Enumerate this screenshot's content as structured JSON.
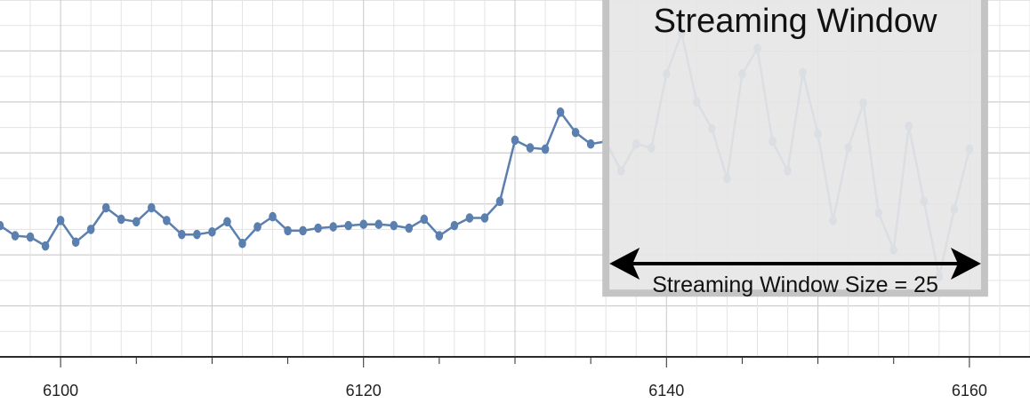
{
  "chart_data": {
    "type": "line",
    "title": "",
    "xlabel": "",
    "ylabel": "",
    "xlim": [
      6096,
      6164
    ],
    "ylim": [
      0,
      14
    ],
    "x_ticks": [
      6100,
      6120,
      6140,
      6160
    ],
    "x_tick_labels": [
      "6100",
      "6120",
      "6140",
      "6160"
    ],
    "grid": true,
    "series": [
      {
        "color": "#5b7fae",
        "x": [
          6096,
          6097,
          6098,
          6099,
          6100,
          6101,
          6102,
          6103,
          6104,
          6105,
          6106,
          6107,
          6108,
          6109,
          6110,
          6111,
          6112,
          6113,
          6114,
          6115,
          6116,
          6117,
          6118,
          6119,
          6120,
          6121,
          6122,
          6123,
          6124,
          6125,
          6126,
          6127,
          6128,
          6129,
          6130,
          6131,
          6132,
          6133,
          6134,
          6135,
          6136,
          6137,
          6138,
          6139,
          6140,
          6141,
          6142,
          6143,
          6144,
          6145,
          6146,
          6147,
          6148,
          6149,
          6150,
          6151,
          6152,
          6153,
          6154,
          6155,
          6156,
          6157,
          6158,
          6159,
          6160
        ],
        "y": [
          5.15,
          4.75,
          4.7,
          4.35,
          5.35,
          4.5,
          5.0,
          5.85,
          5.4,
          5.3,
          5.85,
          5.35,
          4.8,
          4.8,
          4.9,
          5.3,
          4.45,
          5.1,
          5.5,
          4.95,
          4.95,
          5.05,
          5.1,
          5.15,
          5.2,
          5.2,
          5.15,
          5.05,
          5.4,
          4.75,
          5.15,
          5.45,
          5.45,
          6.1,
          8.5,
          8.2,
          8.15,
          9.6,
          8.8,
          8.35,
          8.45,
          7.3,
          8.35,
          8.2,
          11.1,
          12.7,
          10.0,
          8.95,
          7.0,
          11.1,
          12.1,
          8.45,
          7.3,
          11.15,
          8.75,
          5.35,
          8.2,
          9.95,
          5.65,
          4.2,
          9.05,
          6.1,
          3.15,
          5.8,
          8.15
        ]
      }
    ],
    "annotations": {
      "window_title": "Streaming Window",
      "window_size_label": "Streaming Window Size = 25",
      "window_x_range": [
        6136,
        6161
      ],
      "window_y_range": [
        2.5,
        14.2
      ]
    }
  }
}
